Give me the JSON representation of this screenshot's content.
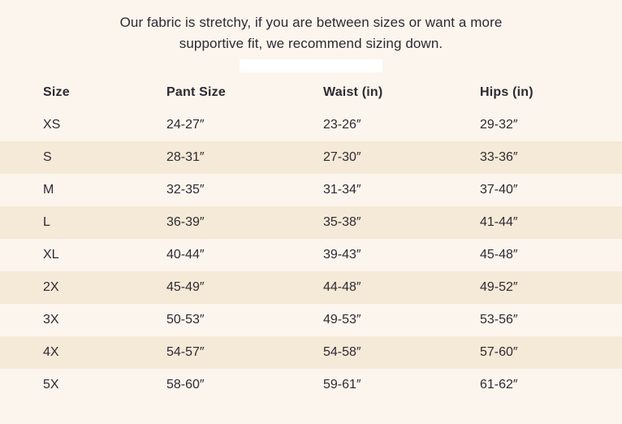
{
  "page": {
    "background_color": "#FBF5ED",
    "stripe_color": "#F5E9D7",
    "text_color": "#2D2B33",
    "divider_bar_color": "#FFFFFF"
  },
  "notice": {
    "line1": "Our fabric is stretchy, if you are between sizes or want a more",
    "line2": "supportive fit, we recommend sizing down."
  },
  "size_chart": {
    "headers": [
      "Size",
      "Pant Size",
      "Waist (in)",
      "Hips (in)"
    ],
    "rows": [
      [
        "XS",
        "24-27″",
        "23-26″",
        "29-32″"
      ],
      [
        "S",
        "28-31″",
        "27-30″",
        "33-36″"
      ],
      [
        "M",
        "32-35″",
        "31-34″",
        "37-40″"
      ],
      [
        "L",
        "36-39″",
        "35-38″",
        "41-44″"
      ],
      [
        "XL",
        "40-44″",
        "39-43″",
        "45-48″"
      ],
      [
        "2X",
        "45-49″",
        "44-48″",
        "49-52″"
      ],
      [
        "3X",
        "50-53″",
        "49-53″",
        "53-56″"
      ],
      [
        "4X",
        "54-57″",
        "54-58″",
        "57-60″"
      ],
      [
        "5X",
        "58-60″",
        "59-61″",
        "61-62″"
      ]
    ]
  }
}
